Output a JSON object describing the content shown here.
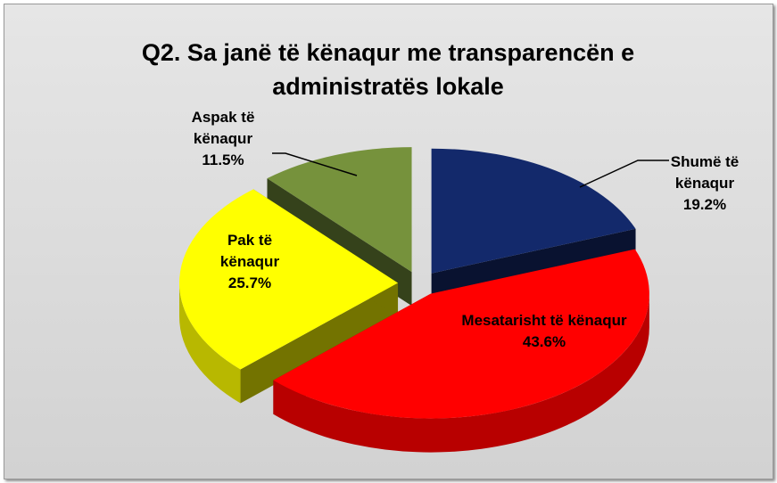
{
  "chart_data": {
    "type": "pie",
    "title": "Q2. Sa janë të kënaqur me transparencën e administratës lokale",
    "categories": [
      "Shumë të kënaqur",
      "Mesatarisht të kënaqur",
      "Pak të kënaqur",
      "Aspak të kënaqur"
    ],
    "values": [
      19.2,
      43.6,
      25.7,
      11.5
    ],
    "value_labels": [
      "19.2%",
      "43.6%",
      "25.7%",
      "11.5%"
    ],
    "colors": [
      "#13296b",
      "#ff0000",
      "#ffff00",
      "#76923c"
    ]
  }
}
